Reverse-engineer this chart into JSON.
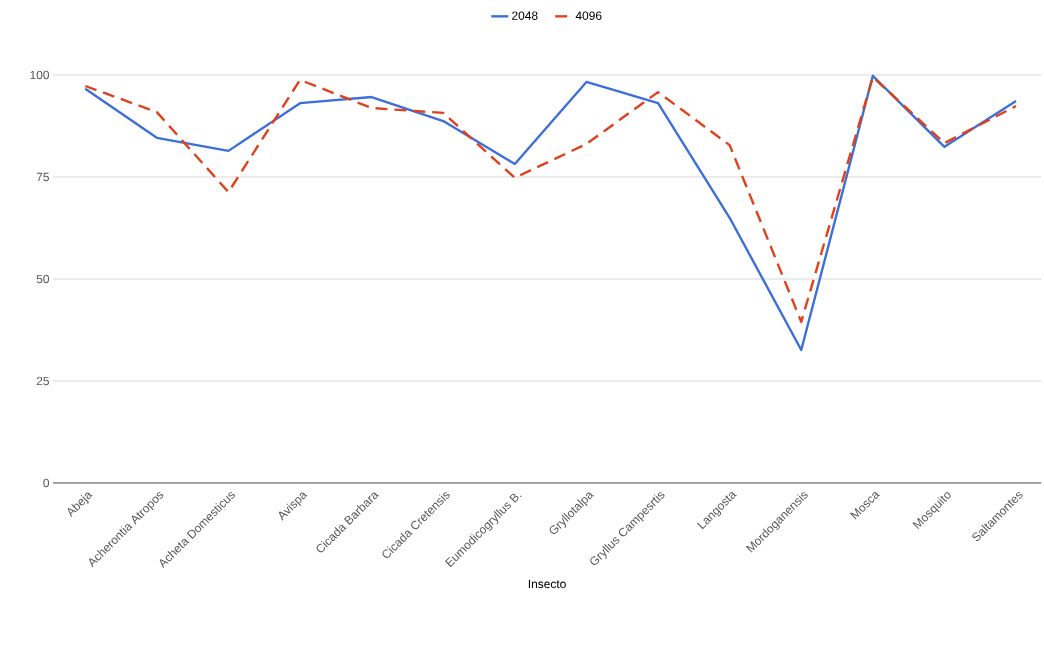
{
  "chart_data": {
    "type": "line",
    "xlabel": "Insecto",
    "categories": [
      "Abeja",
      "Acherontia Atropos",
      "Acheta Domesticus",
      "Avispa",
      "Cicada Barbara",
      "Cicada Cretensis",
      "Eumodicogryllus B.",
      "Gryllotalpa",
      "Gryllus Campesrtis",
      "Langosta",
      "Mordoganensis",
      "Mosca",
      "Mosquito",
      "Saltamontes"
    ],
    "series": [
      {
        "name": "2048",
        "color": "#3c6fd9",
        "line_style": "solid",
        "values": [
          96.6,
          84.6,
          81.4,
          93.1,
          94.6,
          88.7,
          78.2,
          98.3,
          93.1,
          65,
          32.6,
          99.8,
          82.4,
          93.6
        ]
      },
      {
        "name": "4096",
        "color": "#e0401c",
        "line_style": "dashed",
        "values": [
          97.3,
          90.9,
          71.3,
          98.8,
          91.9,
          90.7,
          74.8,
          83.1,
          95.8,
          82.8,
          39.5,
          99.5,
          83.3,
          92.4
        ]
      }
    ],
    "ylim": [
      0,
      100
    ],
    "yticks": [
      0,
      25,
      50,
      75,
      100
    ],
    "grid": "y",
    "legend": "top",
    "marker": "none"
  }
}
